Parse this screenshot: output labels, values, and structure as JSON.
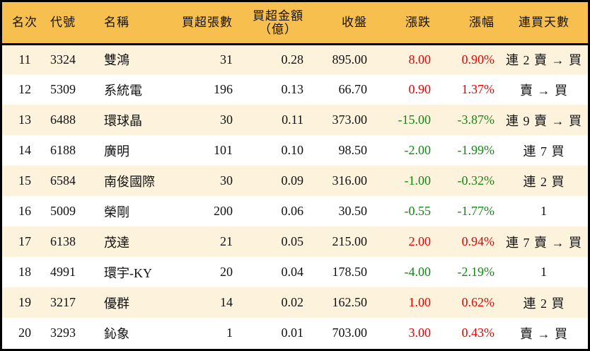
{
  "table": {
    "headers": {
      "rank": "名次",
      "code": "代號",
      "name": "名稱",
      "net_buy_lots": "買超張數",
      "net_buy_amount_line1": "買超金額",
      "net_buy_amount_line2": "（億）",
      "close": "收盤",
      "change": "漲跌",
      "change_pct": "漲幅",
      "consecutive_days": "連買天數"
    },
    "rows": [
      {
        "rank": "11",
        "code": "3324",
        "name": "雙鴻",
        "lots": "31",
        "amount": "0.28",
        "close": "895.00",
        "change": "8.00",
        "pct": "0.90%",
        "days": "連 2 賣 → 買",
        "dir": "up"
      },
      {
        "rank": "12",
        "code": "5309",
        "name": "系統電",
        "lots": "196",
        "amount": "0.13",
        "close": "66.70",
        "change": "0.90",
        "pct": "1.37%",
        "days": "賣 → 買",
        "dir": "up"
      },
      {
        "rank": "13",
        "code": "6488",
        "name": "環球晶",
        "lots": "30",
        "amount": "0.11",
        "close": "373.00",
        "change": "-15.00",
        "pct": "-3.87%",
        "days": "連 9 賣 → 買",
        "dir": "down"
      },
      {
        "rank": "14",
        "code": "6188",
        "name": "廣明",
        "lots": "101",
        "amount": "0.10",
        "close": "98.50",
        "change": "-2.00",
        "pct": "-1.99%",
        "days": "連 7 買",
        "dir": "down"
      },
      {
        "rank": "15",
        "code": "6584",
        "name": "南俊國際",
        "lots": "30",
        "amount": "0.09",
        "close": "316.00",
        "change": "-1.00",
        "pct": "-0.32%",
        "days": "連 2 買",
        "dir": "down"
      },
      {
        "rank": "16",
        "code": "5009",
        "name": "榮剛",
        "lots": "200",
        "amount": "0.06",
        "close": "30.50",
        "change": "-0.55",
        "pct": "-1.77%",
        "days": "1",
        "dir": "down"
      },
      {
        "rank": "17",
        "code": "6138",
        "name": "茂達",
        "lots": "21",
        "amount": "0.05",
        "close": "215.00",
        "change": "2.00",
        "pct": "0.94%",
        "days": "連 7 賣 → 買",
        "dir": "up"
      },
      {
        "rank": "18",
        "code": "4991",
        "name": "環宇-KY",
        "lots": "20",
        "amount": "0.04",
        "close": "178.50",
        "change": "-4.00",
        "pct": "-2.19%",
        "days": "1",
        "dir": "down"
      },
      {
        "rank": "19",
        "code": "3217",
        "name": "優群",
        "lots": "14",
        "amount": "0.02",
        "close": "162.50",
        "change": "1.00",
        "pct": "0.62%",
        "days": "連 2 買",
        "dir": "up"
      },
      {
        "rank": "20",
        "code": "3293",
        "name": "鈊象",
        "lots": "1",
        "amount": "0.01",
        "close": "703.00",
        "change": "3.00",
        "pct": "0.43%",
        "days": "賣 → 買",
        "dir": "up"
      }
    ]
  },
  "colors": {
    "header_bg": "#f7bf4d",
    "row_odd_bg": "#fdf3dd",
    "row_even_bg": "#ffffff",
    "up": "#ee0000",
    "down": "#118811"
  }
}
